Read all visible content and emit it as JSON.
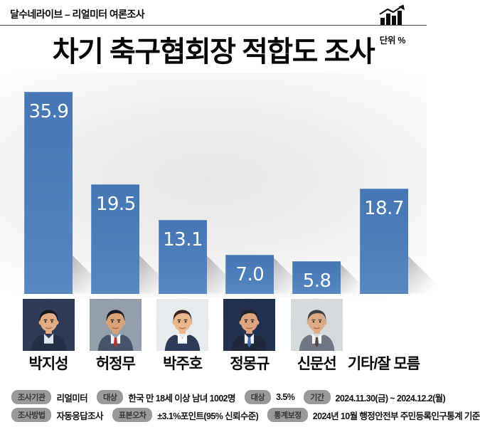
{
  "header": {
    "brand": "달수네라이브 – 리얼미터 여론조사",
    "unit_label": "단위 %",
    "trend_icon": "bar-chart-trend-icon"
  },
  "title": "차기 축구협회장 적합도 조사",
  "chart_data": {
    "type": "bar",
    "title": "차기 축구협회장 적합도 조사",
    "unit": "%",
    "categories": [
      "박지성",
      "허정무",
      "박주호",
      "정몽규",
      "신문선",
      "기타/잘 모름"
    ],
    "values": [
      35.9,
      19.5,
      13.1,
      7.0,
      5.8,
      18.7
    ],
    "value_labels": [
      "35.9",
      "19.5",
      "13.1",
      "7.0",
      "5.8",
      "18.7"
    ],
    "has_photo": [
      true,
      true,
      true,
      true,
      true,
      false
    ],
    "bar_color": "#4a7cb9",
    "value_label_color": "#ffffff",
    "ylim": [
      0,
      38
    ],
    "axes_visible": false,
    "grid": false,
    "legend": "none",
    "background": "#ececec gradient"
  },
  "avatars": [
    {
      "name": "박지성",
      "bg": "#2e3a56",
      "hair": "#17181c",
      "skin": "#e3ac84",
      "suit": "#232f45",
      "shirt": "#dfe6ee",
      "tie": ""
    },
    {
      "name": "허정무",
      "bg": "#93a0ac",
      "hair": "#1d1d1f",
      "skin": "#d9a277",
      "suit": "#46536a",
      "shirt": "#f4f6f8",
      "tie": "#b23430"
    },
    {
      "name": "박주호",
      "bg": "#e8ebed",
      "hair": "#37281f",
      "skin": "#eab68c",
      "suit": "#2c3c58",
      "shirt": "#f7f8fa",
      "tie": ""
    },
    {
      "name": "정몽규",
      "bg": "#20304e",
      "hair": "#23242a",
      "skin": "#dda47d",
      "suit": "#1f2838",
      "shirt": "#f2f4f7",
      "tie": "#3f6fae"
    },
    {
      "name": "신문선",
      "bg": "#d7dadd",
      "hair": "#3f4042",
      "skin": "#dcab85",
      "suit": "#707683",
      "shirt": "#f5f6f8",
      "tie": "#584a41"
    }
  ],
  "footer": {
    "badge_bg": "#9a9a9b",
    "rows": [
      [
        {
          "label": "조사기관",
          "value": "리얼미터"
        },
        {
          "label": "대상",
          "value": "한국 만 18세 이상 남녀 1002명"
        },
        {
          "label": "대상",
          "value": "3.5%"
        },
        {
          "label": "기간",
          "value": "2024.11.30(금) ~ 2024.12.2(월)"
        }
      ],
      [
        {
          "label": "조사방법",
          "value": "자동응답조사"
        },
        {
          "label": "표본오차",
          "value": "±3.1%포인트(95% 신뢰수준)"
        },
        {
          "label": "통계보정",
          "value": "2024년 10월 행정안전부 주민등록인구통계 기준"
        }
      ]
    ]
  }
}
